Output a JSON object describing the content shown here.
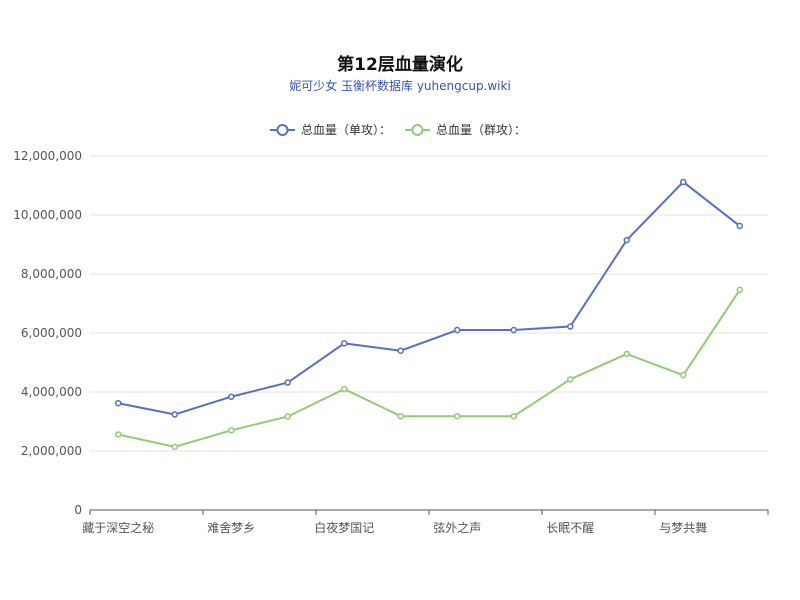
{
  "chart_data": {
    "type": "line",
    "title": "第12层血量演化",
    "subtitle": "妮可少女 玉衡杯数据库 yuhengcup.wiki",
    "x": [
      "藏于深空之秘",
      "",
      "难舍梦乡",
      "",
      "白夜梦国记",
      "",
      "弦外之声",
      "",
      "长眠不醒",
      "",
      "与梦共舞",
      ""
    ],
    "x_tick_labels": [
      "藏于深空之秘",
      "难舍梦乡",
      "白夜梦国记",
      "弦外之声",
      "长眠不醒",
      "与梦共舞"
    ],
    "y_ticks": [
      "0",
      "2,000,000",
      "4,000,000",
      "6,000,000",
      "8,000,000",
      "10,000,000",
      "12,000,000"
    ],
    "ylim": [
      0,
      12000000
    ],
    "grid": true,
    "legend_position": "top-center",
    "series": [
      {
        "name": "总血量（单攻）：",
        "color": "#5470c6",
        "values": [
          3620000,
          3240000,
          3840000,
          4320000,
          5650000,
          5400000,
          6100000,
          6100000,
          6220000,
          9150000,
          11120000,
          9630000
        ]
      },
      {
        "name": "总血量（群攻）：",
        "color": "#91cc75",
        "values": [
          2560000,
          2140000,
          2700000,
          3170000,
          4100000,
          3180000,
          3180000,
          3180000,
          4430000,
          5290000,
          4570000,
          7460000
        ]
      }
    ]
  }
}
